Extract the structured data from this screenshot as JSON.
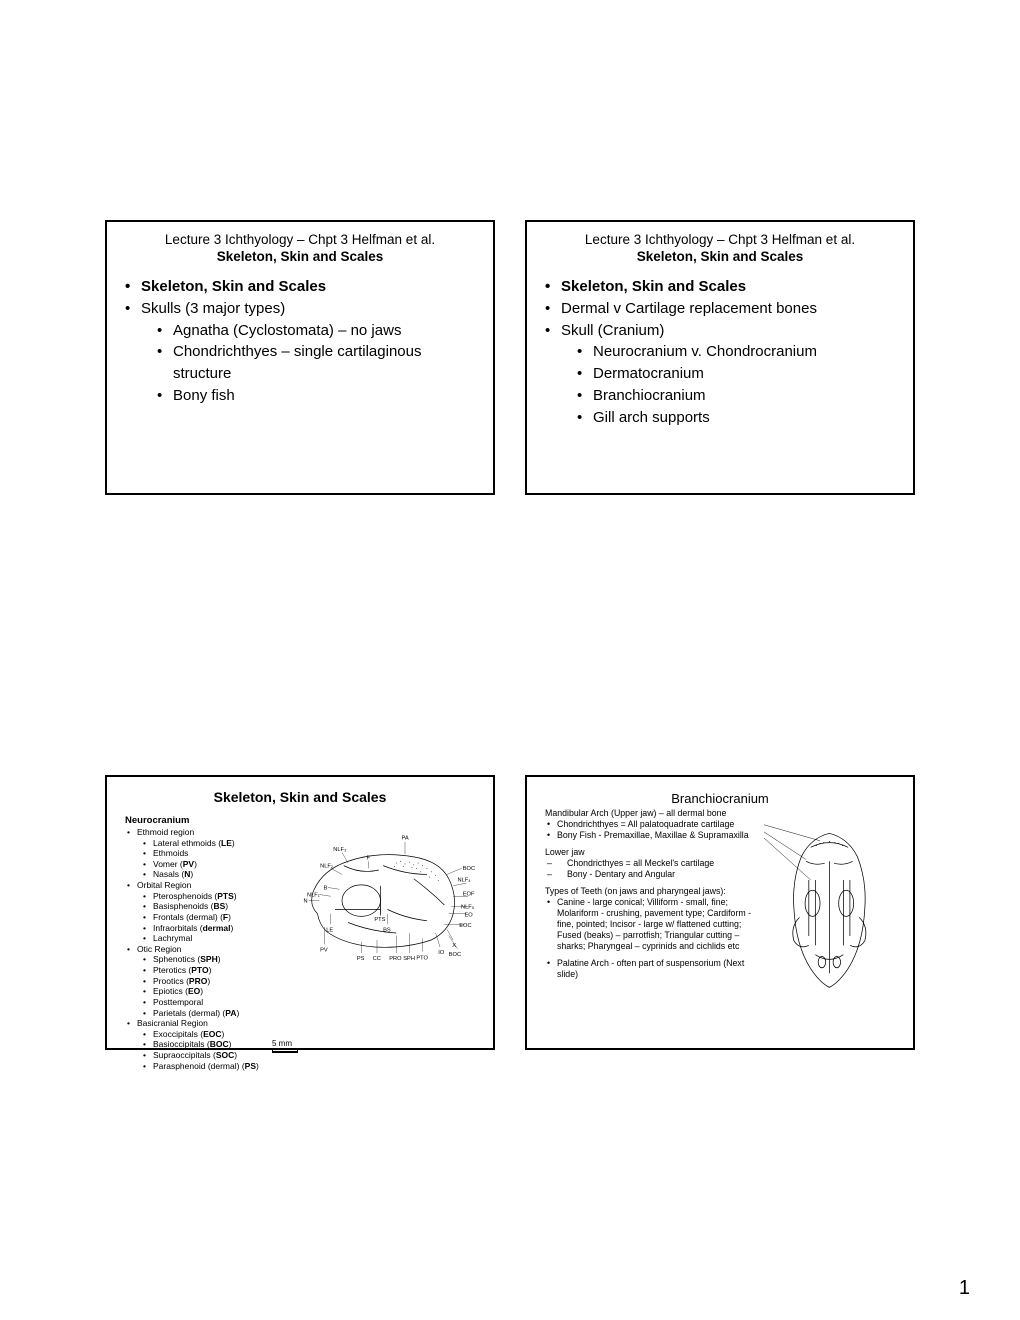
{
  "page_number": "1",
  "slides": {
    "s1": {
      "header": "Lecture 3 Ichthyology – Chpt 3 Helfman et al.",
      "subheader": "Skeleton, Skin and Scales",
      "items": [
        {
          "text": "Skeleton, Skin and Scales",
          "bold": true,
          "indent": 0
        },
        {
          "text": "Skulls (3 major types)",
          "bold": false,
          "indent": 0
        },
        {
          "text": "Agnatha (Cyclostomata) – no jaws",
          "bold": false,
          "indent": 1
        },
        {
          "text": "Chondrichthyes – single cartilaginous structure",
          "bold": false,
          "indent": 1
        },
        {
          "text": "Bony fish",
          "bold": false,
          "indent": 1
        }
      ]
    },
    "s2": {
      "header": "Lecture 3 Ichthyology – Chpt 3 Helfman et al.",
      "subheader": "Skeleton, Skin and Scales",
      "items": [
        {
          "text": "Skeleton, Skin and Scales",
          "bold": true,
          "indent": 0
        },
        {
          "text": "Dermal v Cartilage replacement bones",
          "bold": false,
          "indent": 0
        },
        {
          "text": "Skull (Cranium)",
          "bold": false,
          "indent": 0
        },
        {
          "text": "Neurocranium v. Chondrocranium",
          "bold": false,
          "indent": 1
        },
        {
          "text": "Dermatocranium",
          "bold": false,
          "indent": 1
        },
        {
          "text": "Branchiocranium",
          "bold": false,
          "indent": 1
        },
        {
          "text": "Gill arch supports",
          "bold": false,
          "indent": 1
        }
      ]
    },
    "s3": {
      "title": "Skeleton, Skin and Scales",
      "heading": "Neurocranium",
      "scale_label": "5 mm",
      "regions": [
        {
          "label": "Ethmoid region",
          "items": [
            "Lateral ethmoids (LE)",
            "Ethmoids",
            "Vomer (PV)",
            "Nasals (N)"
          ]
        },
        {
          "label": "Orbital  Region",
          "items": [
            "Pterosphenoids (PTS)",
            "Basisphenoids (BS)",
            "Frontals (dermal) (F)",
            "Infraorbitals (dermal)",
            "Lachrymal"
          ]
        },
        {
          "label": "Otic Region",
          "items": [
            "Sphenotics (SPH)",
            "Pterotics (PTO)",
            "Prootics (PRO)",
            "Epiotics (EO)",
            "Posttemporal",
            "Parietals (dermal) (PA)"
          ]
        },
        {
          "label": "Basicranial Region",
          "items": [
            "Exoccipitals (EOC)",
            "Basioccipitals (BOC)",
            "Supraoccipitals (SOC)",
            "Parasphenoid (dermal) (PS)"
          ]
        }
      ],
      "diagram_labels": [
        "PA",
        "BOC",
        "NLF₃",
        "NLF₄",
        "NLF₂",
        "F",
        "EOF",
        "B",
        "N",
        "NLF₁",
        "NLF₅",
        "PTS",
        "EO",
        "LE",
        "BS",
        "EOC",
        "PV",
        "PTO",
        "IO",
        "X",
        "CC",
        "PS",
        "PRO",
        "SPH",
        "BOC"
      ]
    },
    "s4": {
      "title": "Branchiocranium",
      "upper_heading": "Mandibular Arch (Upper jaw) – all dermal bone",
      "upper_items": [
        "Chondrichthyes = All palatoquadrate cartilage",
        "Bony Fish - Premaxillae, Maxillae & Supramaxilla"
      ],
      "lower_heading": "Lower jaw",
      "lower_items": [
        "Chondricthyes = all Meckel's cartilage",
        "Bony - Dentary and Angular"
      ],
      "teeth_heading": "Types of Teeth (on jaws and pharyngeal jaws):",
      "teeth_text": "Canine - large conical; Villiform - small, fine; Molariform - crushing, pavement type; Cardiform - fine, pointed; Incisor - large w/ flattened cutting; Fused (beaks) – parrotfish; Triangular cutting – sharks; Pharyngeal – cyprinids and cichlids etc",
      "palatine_text": "Palatine Arch - often part of suspensorium (Next slide)"
    }
  },
  "colors": {
    "border": "#000000",
    "text": "#000000",
    "bg": "#ffffff",
    "stipple": "#666666"
  }
}
